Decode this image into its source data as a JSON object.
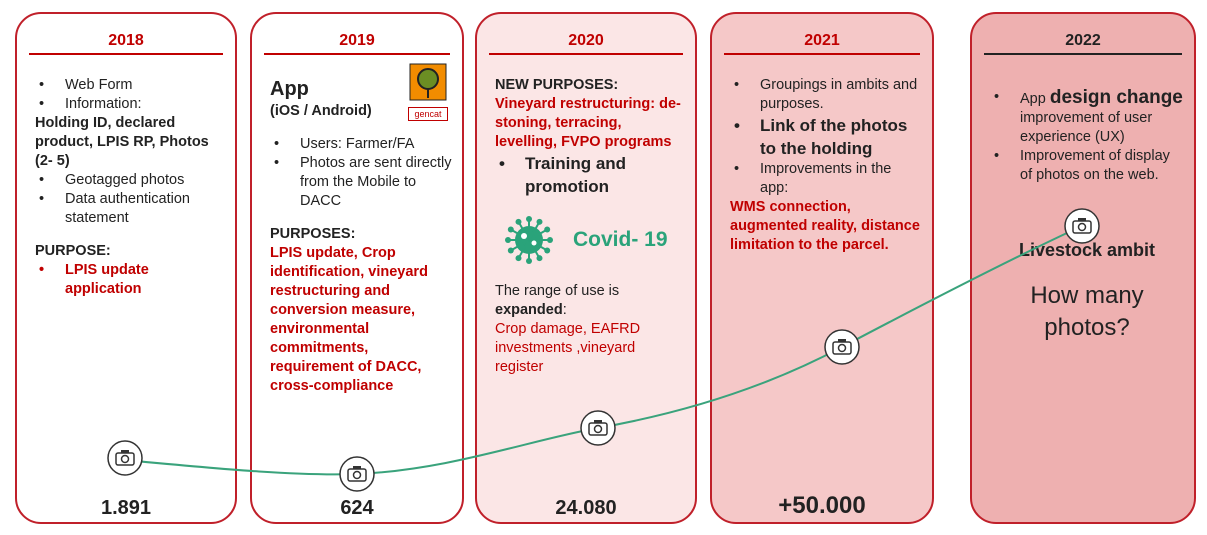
{
  "cards": [
    {
      "year": "2018",
      "count": "1.891",
      "blocks": [
        {
          "style": "bullet",
          "text": "Web Form"
        },
        {
          "style": "bullet",
          "text": "Information:"
        },
        {
          "style": "bold",
          "text": "Holding ID, declared product, LPIS RP, Photos (2- 5)"
        },
        {
          "style": "bullet",
          "text": "Geotagged photos"
        },
        {
          "style": "bullet",
          "text": "Data authentication statement"
        },
        {
          "style": "bold gap",
          "text": "PURPOSE:"
        },
        {
          "style": "redbullet",
          "text": "LPIS update application"
        }
      ]
    },
    {
      "year": "2019",
      "count": "624",
      "logo": "gencat",
      "blocks": [
        {
          "style": "app",
          "text": "App"
        },
        {
          "style": "bold",
          "text": "(iOS / Android)"
        },
        {
          "style": "bullet gap",
          "text": "Users: Farmer/FA"
        },
        {
          "style": "bullet",
          "text": "Photos are sent directly from the Mobile to DACC"
        },
        {
          "style": "bold gap",
          "text": "PURPOSES:"
        },
        {
          "style": "red",
          "text": "LPIS update, Crop identification, vineyard restructuring and conversion measure, environmental commitments, requirement of DACC, cross-compliance"
        }
      ]
    },
    {
      "year": "2020",
      "count": "24.080",
      "blocks": [
        {
          "style": "bold",
          "text": "NEW PURPOSES:"
        },
        {
          "style": "red",
          "text": "Vineyard restructuring: de-stoning, terracing, levelling, FVPO programs"
        },
        {
          "style": "bigbullet",
          "text": "Training and promotion"
        },
        {
          "style": "covid gap",
          "text": "Covid- 19"
        },
        {
          "style": "gap",
          "parts": [
            {
              "style": "",
              "text": "The range of use is "
            },
            {
              "style": "bold",
              "text": "expanded"
            },
            {
              "style": "",
              "text": ":"
            }
          ]
        },
        {
          "style": "redplain",
          "text": "Crop damage, EAFRD investments ,vineyard register"
        }
      ]
    },
    {
      "year": "2021",
      "count": "+50.000",
      "blocks": [
        {
          "style": "bullet",
          "text": "Groupings in ambits and purposes."
        },
        {
          "style": "bigbullet",
          "text": "Link of the photos to the holding"
        },
        {
          "style": "bullet",
          "text": "Improvements in the app:"
        },
        {
          "style": "red",
          "text": "WMS connection, augmented reality, distance limitation to the parcel."
        }
      ]
    },
    {
      "year": "2022",
      "blocks": [
        {
          "style": "bullet",
          "parts": [
            {
              "style": "",
              "text": "App "
            },
            {
              "style": "dsg",
              "text": "design change"
            }
          ]
        },
        {
          "style": "indent",
          "text": "improvement of user experience (UX)"
        },
        {
          "style": "bullet",
          "text": "Improvement of display of photos on the web."
        },
        {
          "style": "livestock",
          "text": "Livestock ambit"
        },
        {
          "style": "huge",
          "text": "How many photos?"
        }
      ]
    }
  ]
}
